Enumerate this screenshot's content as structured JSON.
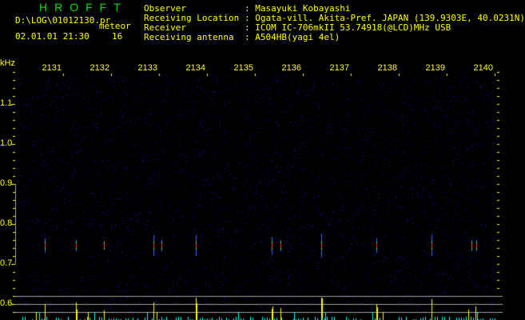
{
  "header": {
    "app_title": "HROFFT",
    "file_path": "D:\\LOG\\01012130.pr",
    "mode_label": "meteor",
    "datetime": "02.01.01 21:30",
    "meteor_count": "16"
  },
  "info": [
    {
      "key": "Observer",
      "value": ": Masayuki Kobayashi"
    },
    {
      "key": "Receiving Location",
      "value": ": Ogata-vill. Akita-Pref. JAPAN (139.9303E, 40.0231N)"
    },
    {
      "key": "Receiver",
      "value": ": ICOM IC-706mkII 53.74918(@LCD)MHz USB"
    },
    {
      "key": "Receiving antenna",
      "value": ": A504HB(yagi 4el)"
    }
  ],
  "spectrogram": {
    "y_unit": "kHz",
    "y_ticks": [
      "1.1",
      "1.0",
      "0.9",
      "0.8",
      "0.7",
      "0.6"
    ],
    "x_ticks": [
      "2131",
      "2132",
      "2133",
      "2134",
      "2135",
      "2136",
      "2137",
      "2138",
      "2139",
      "2140"
    ],
    "colors": {
      "text": "#ffff00",
      "title": "#00e000",
      "noise": "#1010a0",
      "histogram_major": "#ffff00",
      "histogram_minor": "#00ffff",
      "grid": "#a0a0a0"
    }
  }
}
